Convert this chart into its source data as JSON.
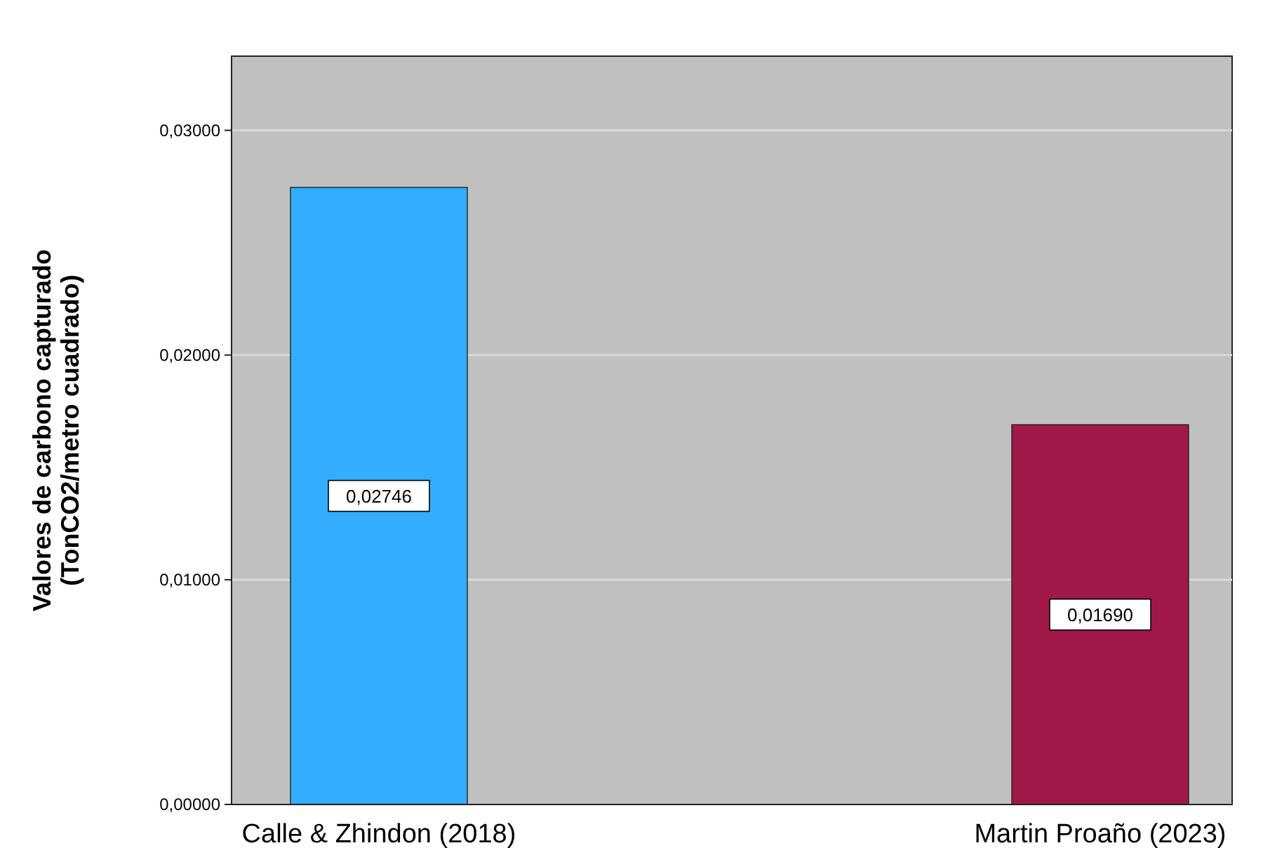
{
  "chart_data": {
    "type": "bar",
    "ylabel": "Valores de carbono capturado\n(TonCO2/metro cuadrado)",
    "categories": [
      "Calle & Zhindon (2018)",
      "Martin Proaño (2023)"
    ],
    "values": [
      0.02746,
      0.0169
    ],
    "colors": [
      "#33adff",
      "#a0174a"
    ],
    "value_labels": [
      "0,02746",
      "0,01690"
    ],
    "ylim": [
      0,
      0.0333
    ],
    "yticks": [
      {
        "value": 0,
        "label": "0,00000"
      },
      {
        "value": 0.01,
        "label": "0,01000"
      },
      {
        "value": 0.02,
        "label": "0,02000"
      },
      {
        "value": 0.03,
        "label": "0,03000"
      }
    ],
    "grid": "y"
  }
}
